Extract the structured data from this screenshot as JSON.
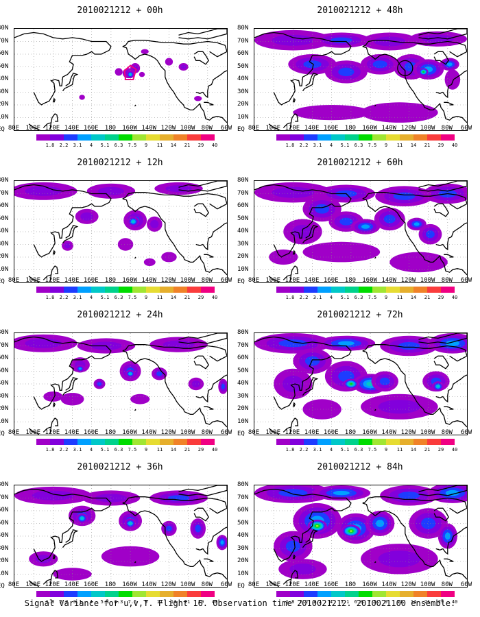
{
  "panels": [
    {
      "title": "2010021212 + 00h",
      "intensity": 0
    },
    {
      "title": "2010021212 + 48h",
      "intensity": 3
    },
    {
      "title": "2010021212 + 12h",
      "intensity": 1
    },
    {
      "title": "2010021212 + 60h",
      "intensity": 4
    },
    {
      "title": "2010021212 + 24h",
      "intensity": 2
    },
    {
      "title": "2010021212 + 72h",
      "intensity": 5
    },
    {
      "title": "2010021212 + 36h",
      "intensity": 2.5
    },
    {
      "title": "2010021212 + 84h",
      "intensity": 6
    }
  ],
  "lat_labels": [
    "80N",
    "70N",
    "60N",
    "50N",
    "40N",
    "30N",
    "20N",
    "10N",
    "EQ"
  ],
  "lon_labels": [
    "80E",
    "100E",
    "120E",
    "140E",
    "160E",
    "180",
    "160W",
    "140W",
    "120W",
    "100W",
    "80W",
    "60W"
  ],
  "colorbar": {
    "labels": [
      "1.8",
      "2.2",
      "3.1",
      "4",
      "5.1",
      "6.3",
      "7.5",
      "9",
      "11",
      "14",
      "21",
      "29",
      "40"
    ],
    "colors": [
      "#a000c8",
      "#8200dc",
      "#1e3cff",
      "#00a0ff",
      "#00c8c8",
      "#00d28c",
      "#00dc00",
      "#a0e632",
      "#e6dc32",
      "#e6af2d",
      "#f08228",
      "#fa3c3c",
      "#f00082"
    ]
  },
  "caption": "Signal Variance for u,v,T. Flight 16. Observation time 2010021212. 2010021100 ensemble."
}
